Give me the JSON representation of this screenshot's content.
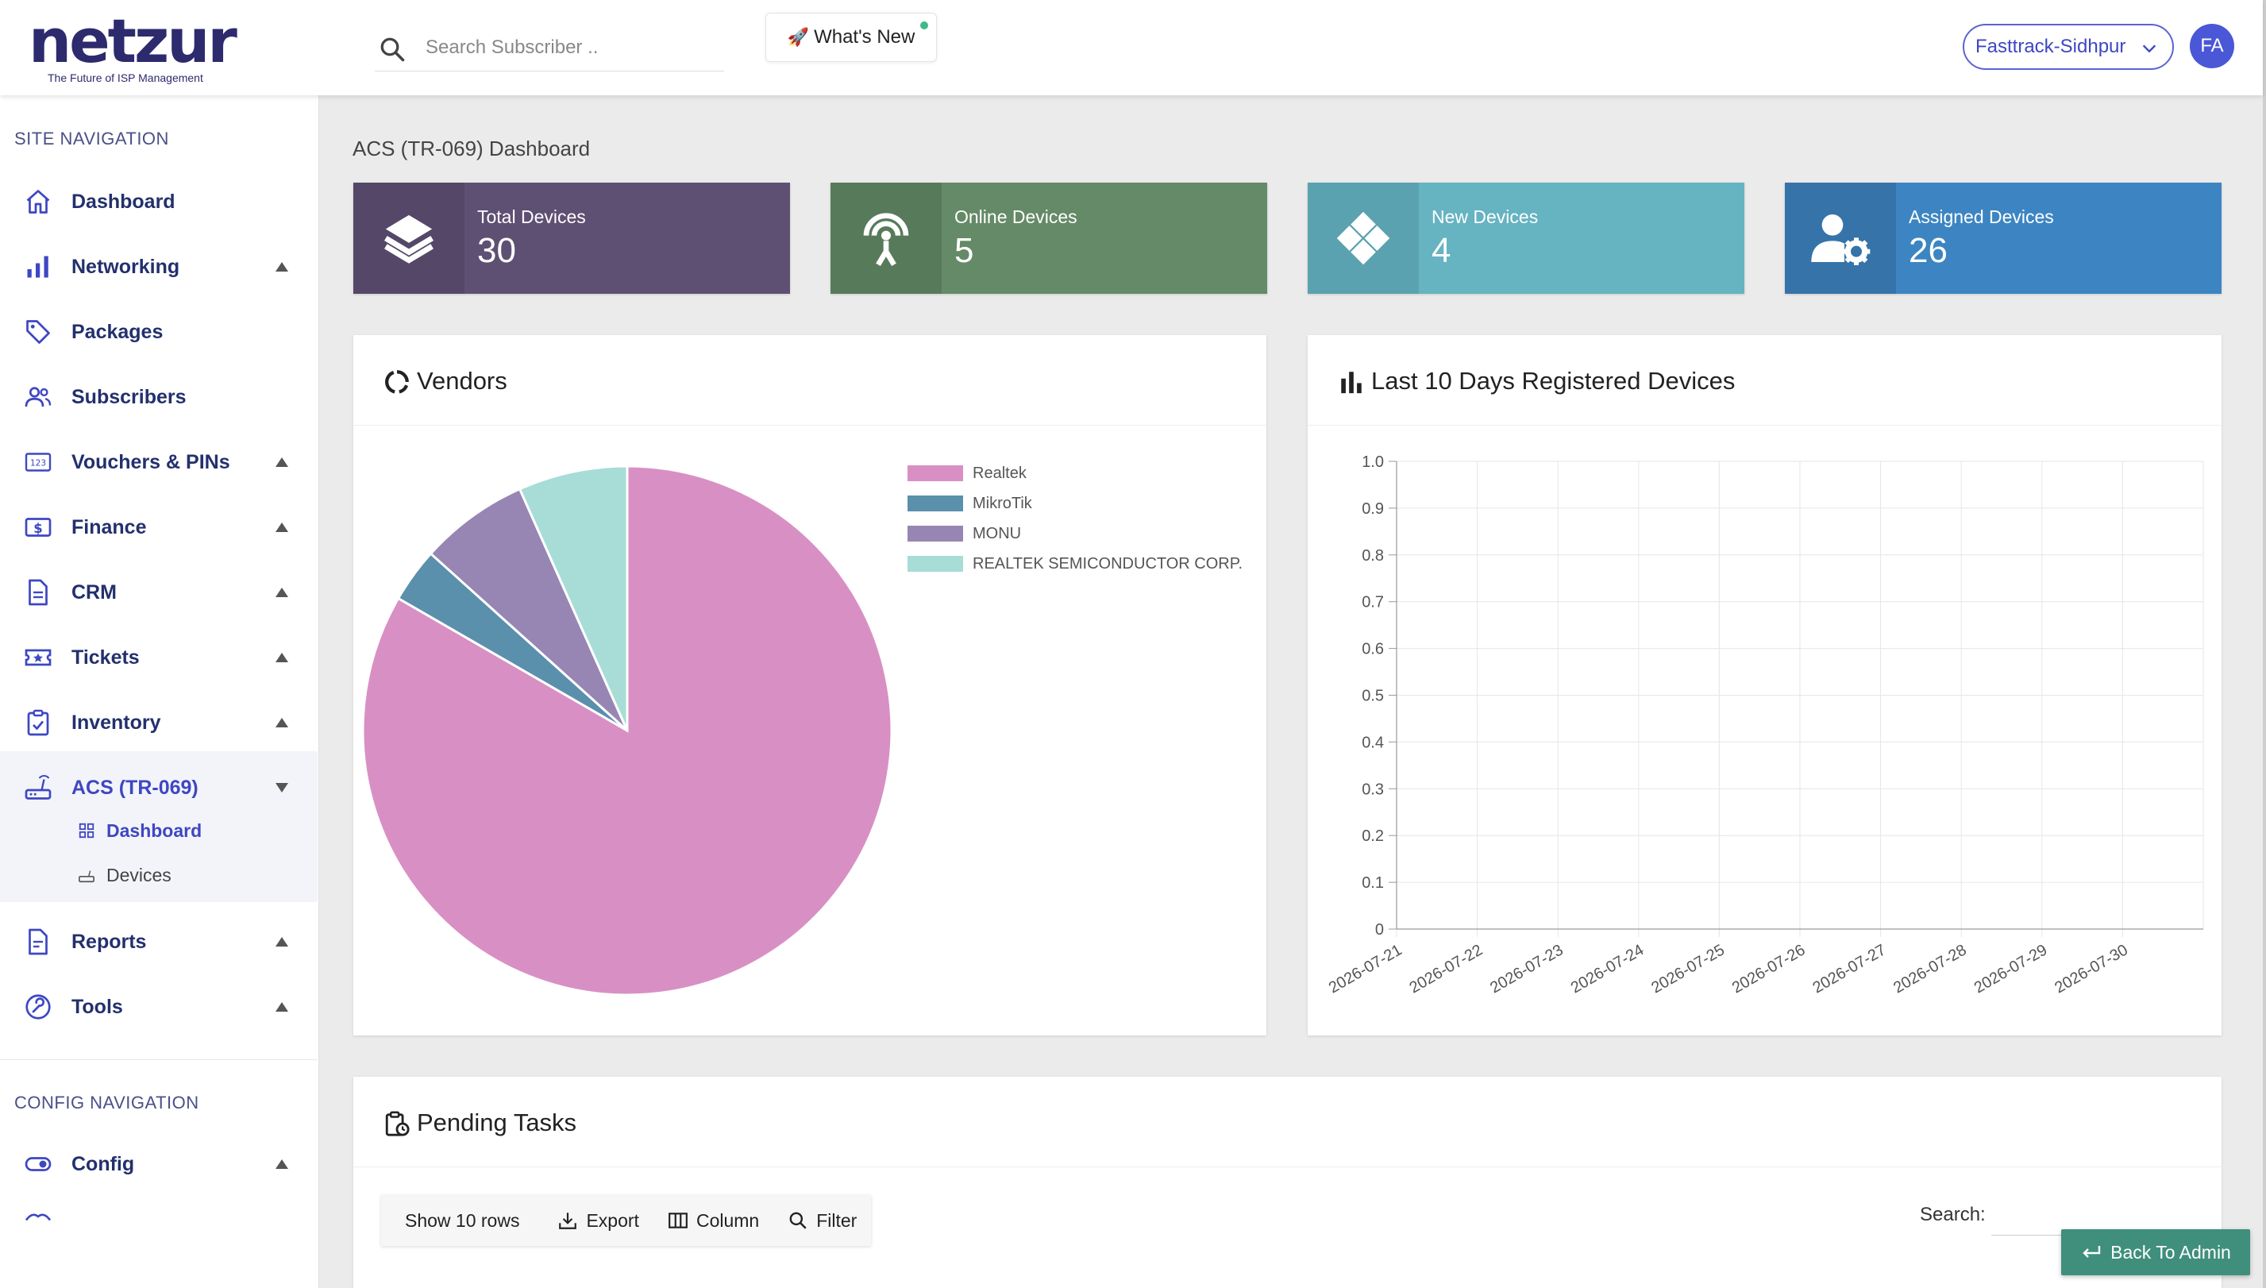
{
  "header": {
    "logo_word": "netzur",
    "logo_tagline": "The Future of ISP Management",
    "search_placeholder": "Search Subscriber ..",
    "whats_new_label": "What's New",
    "site_selector": "Fasttrack-Sidhpur",
    "avatar_initials": "FA"
  },
  "sidebar": {
    "site_nav_heading": "SITE NAVIGATION",
    "items": [
      {
        "label": "Dashboard"
      },
      {
        "label": "Networking"
      },
      {
        "label": "Packages"
      },
      {
        "label": "Subscribers"
      },
      {
        "label": "Vouchers & PINs"
      },
      {
        "label": "Finance"
      },
      {
        "label": "CRM"
      },
      {
        "label": "Tickets"
      },
      {
        "label": "Inventory"
      },
      {
        "label": "ACS (TR-069)"
      },
      {
        "label": "Reports"
      },
      {
        "label": "Tools"
      }
    ],
    "acs_sub": [
      {
        "label": "Dashboard"
      },
      {
        "label": "Devices"
      }
    ],
    "config_nav_heading": "CONFIG NAVIGATION",
    "config_items": [
      {
        "label": "Config"
      }
    ]
  },
  "main": {
    "page_title": "ACS (TR-069) Dashboard",
    "stats": [
      {
        "label": "Total Devices",
        "value": "30",
        "icon": "layers-icon",
        "color": "#5e5073",
        "icon_bg": "#544768"
      },
      {
        "label": "Online Devices",
        "value": "5",
        "icon": "antenna-icon",
        "color": "#648a67",
        "icon_bg": "#577b5a"
      },
      {
        "label": "New Devices",
        "value": "4",
        "icon": "diamond-icon",
        "color": "#66b3c2",
        "icon_bg": "#5aa2b0"
      },
      {
        "label": "Assigned Devices",
        "value": "26",
        "icon": "user-gear-icon",
        "color": "#3c85c2",
        "icon_bg": "#3573a9"
      }
    ],
    "vendors_title": "Vendors",
    "registered_title": "Last 10 Days Registered Devices",
    "pending_title": "Pending Tasks",
    "toolbar": {
      "show_rows": "Show 10 rows",
      "export": "Export",
      "column": "Column",
      "filter": "Filter"
    },
    "search_label": "Search:",
    "back_to_admin": "Back To Admin"
  },
  "chart_data": [
    {
      "type": "pie",
      "title": "Vendors",
      "categories": [
        "Realtek",
        "MikroTik",
        "MONU",
        "REALTEK SEMICONDUCTOR CORP."
      ],
      "values": [
        25,
        1,
        2,
        2
      ],
      "colors": [
        "#d890c4",
        "#5a90ac",
        "#9786b4",
        "#a7ddd6"
      ],
      "legend": "top-right"
    },
    {
      "type": "line",
      "title": "Last 10 Days Registered Devices",
      "x": [
        "2026-07-21",
        "2026-07-22",
        "2026-07-23",
        "2026-07-24",
        "2026-07-25",
        "2026-07-26",
        "2026-07-27",
        "2026-07-28",
        "2026-07-29",
        "2026-07-30"
      ],
      "series": [],
      "ylim": [
        0,
        1.0
      ],
      "yticks": [
        "0",
        "0.1",
        "0.2",
        "0.3",
        "0.4",
        "0.5",
        "0.6",
        "0.7",
        "0.8",
        "0.9",
        "1.0"
      ],
      "grid": true
    }
  ]
}
